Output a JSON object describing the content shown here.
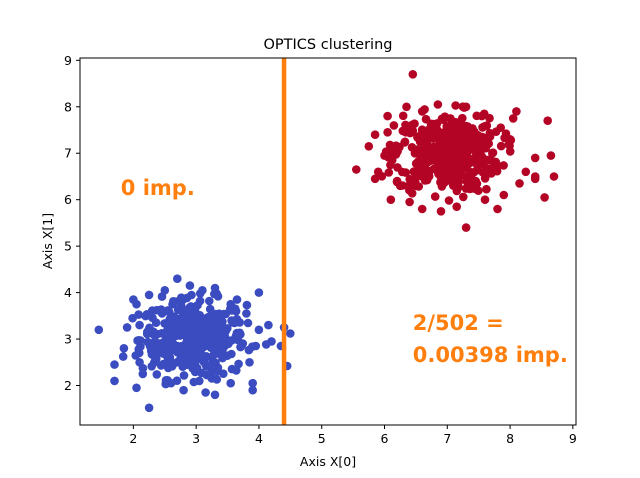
{
  "chart_data": {
    "type": "scatter",
    "title": "OPTICS clustering",
    "xlabel": "Axis X[0]",
    "ylabel": "Axis X[1]",
    "xlim": [
      1.15,
      9.05
    ],
    "ylim": [
      1.15,
      9.05
    ],
    "xticks": [
      2,
      3,
      4,
      5,
      6,
      7,
      8,
      9
    ],
    "yticks": [
      2,
      3,
      4,
      5,
      6,
      7,
      8,
      9
    ],
    "grid": false,
    "legend": "none",
    "series": [
      {
        "color": "#3b4cc0",
        "center": [
          2.95,
          3.0
        ],
        "spread": [
          0.42,
          0.42
        ],
        "points": [
          [
            1.45,
            3.2
          ],
          [
            1.7,
            2.45
          ],
          [
            1.7,
            2.1
          ],
          [
            1.85,
            2.8
          ],
          [
            1.9,
            3.25
          ],
          [
            2.0,
            3.85
          ],
          [
            2.05,
            3.75
          ],
          [
            2.05,
            1.95
          ],
          [
            2.1,
            2.5
          ],
          [
            2.25,
            1.52
          ],
          [
            2.25,
            3.95
          ],
          [
            2.35,
            2.55
          ],
          [
            2.5,
            4.05
          ],
          [
            2.7,
            4.3
          ],
          [
            2.9,
            4.15
          ],
          [
            3.1,
            4.05
          ],
          [
            3.3,
            4.1
          ],
          [
            3.15,
            1.85
          ],
          [
            3.55,
            3.75
          ],
          [
            3.65,
            3.85
          ],
          [
            3.55,
            2.05
          ],
          [
            3.8,
            3.55
          ],
          [
            3.85,
            2.5
          ],
          [
            3.9,
            2.05
          ],
          [
            3.9,
            1.9
          ],
          [
            4.0,
            4.0
          ],
          [
            4.0,
            3.2
          ],
          [
            4.15,
            3.3
          ],
          [
            4.2,
            2.95
          ],
          [
            4.4,
            3.25
          ],
          [
            4.35,
            2.85
          ],
          [
            4.45,
            2.42
          ],
          [
            4.5,
            3.12
          ],
          [
            3.95,
            2.85
          ],
          [
            2.6,
            2.05
          ],
          [
            2.8,
            1.9
          ],
          [
            3.3,
            1.8
          ],
          [
            2.1,
            3.3
          ],
          [
            2.15,
            2.25
          ],
          [
            3.05,
            2.1
          ]
        ]
      },
      {
        "color": "#b40426",
        "center": [
          7.0,
          7.0
        ],
        "spread": [
          0.42,
          0.42
        ],
        "points": [
          [
            5.55,
            6.65
          ],
          [
            5.75,
            7.15
          ],
          [
            5.85,
            7.4
          ],
          [
            5.9,
            6.6
          ],
          [
            6.0,
            6.95
          ],
          [
            6.05,
            7.8
          ],
          [
            6.1,
            6.0
          ],
          [
            6.2,
            6.4
          ],
          [
            6.4,
            5.95
          ],
          [
            6.35,
            8.0
          ],
          [
            6.45,
            8.7
          ],
          [
            6.6,
            7.9
          ],
          [
            6.85,
            8.05
          ],
          [
            7.05,
            7.75
          ],
          [
            7.15,
            5.85
          ],
          [
            7.3,
            5.4
          ],
          [
            7.55,
            7.8
          ],
          [
            7.6,
            6.0
          ],
          [
            7.8,
            5.8
          ],
          [
            7.85,
            7.55
          ],
          [
            8.0,
            7.3
          ],
          [
            8.05,
            7.75
          ],
          [
            8.1,
            7.9
          ],
          [
            8.15,
            6.35
          ],
          [
            8.25,
            6.6
          ],
          [
            8.4,
            6.45
          ],
          [
            8.4,
            6.9
          ],
          [
            8.55,
            6.05
          ],
          [
            8.6,
            7.7
          ],
          [
            8.65,
            6.95
          ],
          [
            8.7,
            6.5
          ],
          [
            8.4,
            6.5
          ],
          [
            6.6,
            5.8
          ],
          [
            6.9,
            5.75
          ],
          [
            7.9,
            6.1
          ],
          [
            6.05,
            7.45
          ],
          [
            6.25,
            6.3
          ],
          [
            7.3,
            8.0
          ],
          [
            6.15,
            7.6
          ],
          [
            5.85,
            6.45
          ]
        ]
      }
    ],
    "vline": {
      "x": 4.4,
      "color": "#ff7f0e"
    },
    "annotations": [
      {
        "id": "left",
        "lines": [
          "0 imp."
        ],
        "color": "#ff7f0e",
        "x": 1.8,
        "y": 6.1
      },
      {
        "id": "right",
        "lines": [
          "2/502 =",
          "0.00398 imp."
        ],
        "color": "#ff7f0e",
        "x": 6.45,
        "y": 3.2
      }
    ]
  }
}
